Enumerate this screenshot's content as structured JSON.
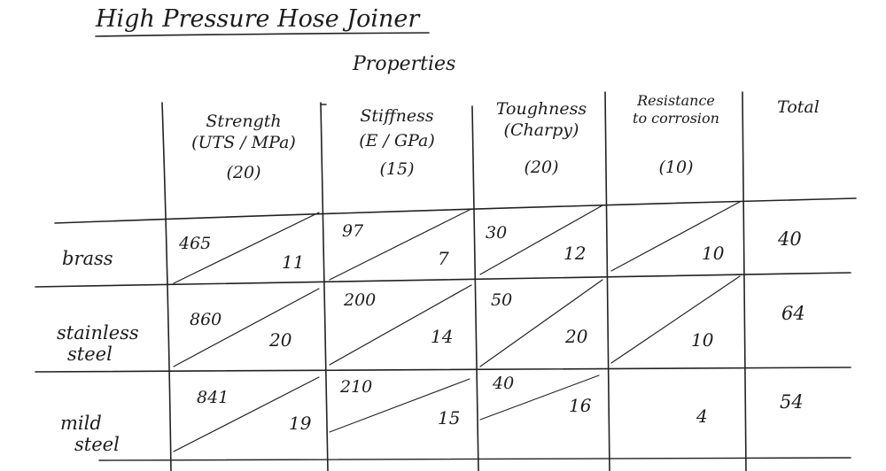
{
  "title": "High Pressure Hose Joiner",
  "group_header": "Properties",
  "columns": [
    {
      "lines": [
        "Strength",
        "(UTS / MPa)",
        "(20)"
      ]
    },
    {
      "lines": [
        "Stiffness",
        "(E / GPa)",
        "(15)"
      ]
    },
    {
      "lines": [
        "Toughness",
        "(Charpy)",
        "(20)"
      ]
    },
    {
      "lines": [
        "Resistance",
        "to corrosion",
        "(10)"
      ]
    },
    {
      "lines": [
        "Total"
      ]
    }
  ],
  "rows": [
    {
      "label": [
        "brass"
      ],
      "cells": [
        {
          "value": "465",
          "score": "11"
        },
        {
          "value": "97",
          "score": "7"
        },
        {
          "value": "30",
          "score": "12"
        },
        {
          "value": "",
          "score": "10"
        }
      ],
      "total": "40"
    },
    {
      "label": [
        "stainless",
        "steel"
      ],
      "cells": [
        {
          "value": "860",
          "score": "20"
        },
        {
          "value": "200",
          "score": "14"
        },
        {
          "value": "50",
          "score": "20"
        },
        {
          "value": "",
          "score": "10"
        }
      ],
      "total": "64"
    },
    {
      "label": [
        "mild",
        "steel"
      ],
      "cells": [
        {
          "value": "841",
          "score": "19"
        },
        {
          "value": "210",
          "score": "15"
        },
        {
          "value": "40",
          "score": "16"
        },
        {
          "value": "",
          "score": "4"
        }
      ],
      "total": "54"
    }
  ]
}
